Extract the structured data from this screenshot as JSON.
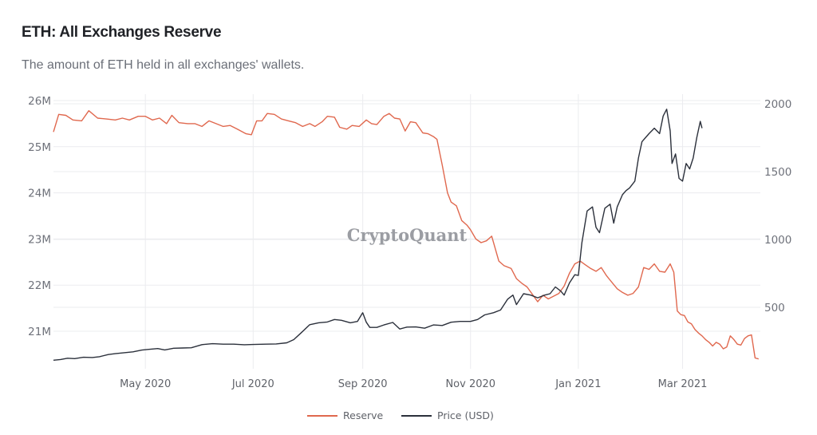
{
  "header": {
    "title": "ETH: All Exchanges Reserve",
    "subtitle": "The amount of ETH held in all exchanges' wallets."
  },
  "watermark": "CryptoQuant",
  "colors": {
    "reserve": "#e0684e",
    "price": "#2b303b",
    "grid": "#ebecef"
  },
  "chart_data": {
    "type": "line",
    "title": "ETH: All Exchanges Reserve",
    "subtitle": "The amount of ETH held in all exchanges' wallets.",
    "xlabel": "",
    "ylabel_left": "",
    "ylabel_right": "",
    "grid": true,
    "legend_position": "bottom-center",
    "x_range": [
      "2020-03-10",
      "2021-03-12"
    ],
    "x_ticks": [
      {
        "date": "2020-05-01",
        "label": "May 2020"
      },
      {
        "date": "2020-07-01",
        "label": "Jul 2020"
      },
      {
        "date": "2020-09-01",
        "label": "Sep 2020"
      },
      {
        "date": "2020-11-01",
        "label": "Nov 2020"
      },
      {
        "date": "2021-01-01",
        "label": "Jan 2021"
      },
      {
        "date": "2021-03-01",
        "label": "Mar 2021"
      }
    ],
    "y_left": {
      "range": [
        20.4,
        26.0
      ],
      "ticks": [
        {
          "value": 21,
          "label": "21M"
        },
        {
          "value": 22,
          "label": "22M"
        },
        {
          "value": 23,
          "label": "23M"
        },
        {
          "value": 24,
          "label": "24M"
        },
        {
          "value": 25,
          "label": "25M"
        },
        {
          "value": 26,
          "label": "26M"
        }
      ],
      "unit": "million ETH"
    },
    "y_right": {
      "range": [
        0,
        2000
      ],
      "ticks": [
        {
          "value": 500,
          "label": "500"
        },
        {
          "value": 1000,
          "label": "1000"
        },
        {
          "value": 1500,
          "label": "1500"
        },
        {
          "value": 2000,
          "label": "2000"
        }
      ],
      "unit": "USD"
    },
    "legend": [
      {
        "name": "Reserve",
        "axis": "left"
      },
      {
        "name": "Price (USD)",
        "axis": "right"
      }
    ],
    "series": [
      {
        "name": "Reserve",
        "axis": "left",
        "points": [
          [
            "2020-03-10",
            25.32
          ],
          [
            "2020-03-13",
            25.7
          ],
          [
            "2020-03-17",
            25.68
          ],
          [
            "2020-03-21",
            25.58
          ],
          [
            "2020-03-26",
            25.56
          ],
          [
            "2020-03-30",
            25.78
          ],
          [
            "2020-04-04",
            25.62
          ],
          [
            "2020-04-09",
            25.6
          ],
          [
            "2020-04-14",
            25.58
          ],
          [
            "2020-04-18",
            25.62
          ],
          [
            "2020-04-22",
            25.58
          ],
          [
            "2020-04-27",
            25.66
          ],
          [
            "2020-05-01",
            25.66
          ],
          [
            "2020-05-05",
            25.58
          ],
          [
            "2020-05-09",
            25.62
          ],
          [
            "2020-05-13",
            25.5
          ],
          [
            "2020-05-16",
            25.68
          ],
          [
            "2020-05-20",
            25.52
          ],
          [
            "2020-05-25",
            25.5
          ],
          [
            "2020-05-29",
            25.5
          ],
          [
            "2020-06-02",
            25.44
          ],
          [
            "2020-06-06",
            25.56
          ],
          [
            "2020-06-10",
            25.5
          ],
          [
            "2020-06-14",
            25.44
          ],
          [
            "2020-06-18",
            25.46
          ],
          [
            "2020-06-22",
            25.38
          ],
          [
            "2020-06-27",
            25.28
          ],
          [
            "2020-06-30",
            25.26
          ],
          [
            "2020-07-03",
            25.56
          ],
          [
            "2020-07-06",
            25.56
          ],
          [
            "2020-07-09",
            25.72
          ],
          [
            "2020-07-13",
            25.7
          ],
          [
            "2020-07-17",
            25.6
          ],
          [
            "2020-07-21",
            25.56
          ],
          [
            "2020-07-25",
            25.52
          ],
          [
            "2020-07-29",
            25.44
          ],
          [
            "2020-08-02",
            25.5
          ],
          [
            "2020-08-05",
            25.44
          ],
          [
            "2020-08-09",
            25.54
          ],
          [
            "2020-08-12",
            25.66
          ],
          [
            "2020-08-16",
            25.64
          ],
          [
            "2020-08-19",
            25.42
          ],
          [
            "2020-08-23",
            25.38
          ],
          [
            "2020-08-26",
            25.46
          ],
          [
            "2020-08-30",
            25.44
          ],
          [
            "2020-09-03",
            25.58
          ],
          [
            "2020-09-06",
            25.5
          ],
          [
            "2020-09-09",
            25.48
          ],
          [
            "2020-09-13",
            25.66
          ],
          [
            "2020-09-16",
            25.72
          ],
          [
            "2020-09-19",
            25.62
          ],
          [
            "2020-09-22",
            25.6
          ],
          [
            "2020-09-25",
            25.34
          ],
          [
            "2020-09-28",
            25.54
          ],
          [
            "2020-10-01",
            25.52
          ],
          [
            "2020-10-05",
            25.3
          ],
          [
            "2020-10-08",
            25.28
          ],
          [
            "2020-10-11",
            25.22
          ],
          [
            "2020-10-13",
            25.16
          ],
          [
            "2020-10-16",
            24.6
          ],
          [
            "2020-10-19",
            24.0
          ],
          [
            "2020-10-21",
            23.8
          ],
          [
            "2020-10-24",
            23.72
          ],
          [
            "2020-10-27",
            23.4
          ],
          [
            "2020-10-30",
            23.3
          ],
          [
            "2020-11-01",
            23.2
          ],
          [
            "2020-11-04",
            23.0
          ],
          [
            "2020-11-07",
            22.92
          ],
          [
            "2020-11-10",
            22.96
          ],
          [
            "2020-11-13",
            23.06
          ],
          [
            "2020-11-17",
            22.52
          ],
          [
            "2020-11-20",
            22.42
          ],
          [
            "2020-11-24",
            22.36
          ],
          [
            "2020-11-27",
            22.14
          ],
          [
            "2020-11-30",
            22.04
          ],
          [
            "2020-12-03",
            21.96
          ],
          [
            "2020-12-06",
            21.8
          ],
          [
            "2020-12-09",
            21.64
          ],
          [
            "2020-12-12",
            21.78
          ],
          [
            "2020-12-15",
            21.7
          ],
          [
            "2020-12-18",
            21.76
          ],
          [
            "2020-12-21",
            21.82
          ],
          [
            "2020-12-24",
            21.98
          ],
          [
            "2020-12-27",
            22.26
          ],
          [
            "2020-12-30",
            22.46
          ],
          [
            "2021-01-02",
            22.52
          ],
          [
            "2021-01-05",
            22.44
          ],
          [
            "2021-01-08",
            22.36
          ],
          [
            "2021-01-11",
            22.3
          ],
          [
            "2021-01-14",
            22.38
          ],
          [
            "2021-01-17",
            22.2
          ],
          [
            "2021-01-20",
            22.06
          ],
          [
            "2021-01-23",
            21.92
          ],
          [
            "2021-01-26",
            21.84
          ],
          [
            "2021-01-29",
            21.78
          ],
          [
            "2021-02-01",
            21.82
          ],
          [
            "2021-02-04",
            21.96
          ],
          [
            "2021-02-07",
            22.38
          ],
          [
            "2021-02-10",
            22.34
          ],
          [
            "2021-02-13",
            22.46
          ],
          [
            "2021-02-16",
            22.3
          ],
          [
            "2021-02-19",
            22.28
          ],
          [
            "2021-02-22",
            22.46
          ],
          [
            "2021-02-24",
            22.28
          ],
          [
            "2021-02-26",
            21.44
          ],
          [
            "2021-02-28",
            21.36
          ],
          [
            "2021-03-02",
            21.34
          ],
          [
            "2021-03-04",
            21.2
          ],
          [
            "2021-03-06",
            21.16
          ],
          [
            "2021-03-08",
            21.04
          ],
          [
            "2021-03-10",
            20.96
          ],
          [
            "2021-03-12",
            20.9
          ],
          [
            "2021-03-14",
            20.82
          ],
          [
            "2021-03-16",
            20.76
          ],
          [
            "2021-03-18",
            20.68
          ],
          [
            "2021-03-20",
            20.76
          ],
          [
            "2021-03-22",
            20.72
          ],
          [
            "2021-03-24",
            20.62
          ],
          [
            "2021-03-26",
            20.66
          ],
          [
            "2021-03-28",
            20.9
          ],
          [
            "2021-03-30",
            20.82
          ],
          [
            "2021-04-01",
            20.72
          ],
          [
            "2021-04-03",
            20.7
          ],
          [
            "2021-04-05",
            20.84
          ],
          [
            "2021-04-07",
            20.9
          ],
          [
            "2021-04-09",
            20.92
          ],
          [
            "2021-04-11",
            20.42
          ],
          [
            "2021-04-13",
            20.4
          ]
        ]
      },
      {
        "name": "Price (USD)",
        "axis": "right",
        "points": [
          [
            "2020-03-10",
            110
          ],
          [
            "2020-03-14",
            115
          ],
          [
            "2020-03-18",
            125
          ],
          [
            "2020-03-22",
            122
          ],
          [
            "2020-03-27",
            132
          ],
          [
            "2020-04-01",
            130
          ],
          [
            "2020-04-05",
            136
          ],
          [
            "2020-04-10",
            152
          ],
          [
            "2020-04-14",
            158
          ],
          [
            "2020-04-19",
            165
          ],
          [
            "2020-04-24",
            172
          ],
          [
            "2020-04-29",
            185
          ],
          [
            "2020-05-03",
            190
          ],
          [
            "2020-05-08",
            196
          ],
          [
            "2020-05-12",
            186
          ],
          [
            "2020-05-17",
            198
          ],
          [
            "2020-05-22",
            200
          ],
          [
            "2020-05-27",
            202
          ],
          [
            "2020-06-02",
            225
          ],
          [
            "2020-06-08",
            232
          ],
          [
            "2020-06-14",
            228
          ],
          [
            "2020-06-20",
            228
          ],
          [
            "2020-06-26",
            224
          ],
          [
            "2020-07-01",
            226
          ],
          [
            "2020-07-08",
            228
          ],
          [
            "2020-07-14",
            230
          ],
          [
            "2020-07-20",
            238
          ],
          [
            "2020-07-24",
            262
          ],
          [
            "2020-07-28",
            310
          ],
          [
            "2020-08-02",
            372
          ],
          [
            "2020-08-07",
            386
          ],
          [
            "2020-08-12",
            392
          ],
          [
            "2020-08-16",
            410
          ],
          [
            "2020-08-20",
            404
          ],
          [
            "2020-08-25",
            386
          ],
          [
            "2020-08-29",
            396
          ],
          [
            "2020-09-01",
            460
          ],
          [
            "2020-09-03",
            390
          ],
          [
            "2020-09-05",
            352
          ],
          [
            "2020-09-09",
            352
          ],
          [
            "2020-09-13",
            370
          ],
          [
            "2020-09-18",
            388
          ],
          [
            "2020-09-22",
            340
          ],
          [
            "2020-09-26",
            354
          ],
          [
            "2020-10-01",
            355
          ],
          [
            "2020-10-06",
            346
          ],
          [
            "2020-10-11",
            370
          ],
          [
            "2020-10-16",
            366
          ],
          [
            "2020-10-21",
            390
          ],
          [
            "2020-10-26",
            396
          ],
          [
            "2020-11-01",
            396
          ],
          [
            "2020-11-05",
            410
          ],
          [
            "2020-11-09",
            444
          ],
          [
            "2020-11-14",
            460
          ],
          [
            "2020-11-18",
            480
          ],
          [
            "2020-11-22",
            560
          ],
          [
            "2020-11-25",
            590
          ],
          [
            "2020-11-27",
            520
          ],
          [
            "2020-12-01",
            600
          ],
          [
            "2020-12-05",
            590
          ],
          [
            "2020-12-09",
            570
          ],
          [
            "2020-12-13",
            590
          ],
          [
            "2020-12-16",
            600
          ],
          [
            "2020-12-19",
            650
          ],
          [
            "2020-12-22",
            620
          ],
          [
            "2020-12-24",
            590
          ],
          [
            "2020-12-27",
            680
          ],
          [
            "2020-12-30",
            740
          ],
          [
            "2021-01-01",
            735
          ],
          [
            "2021-01-03",
            975
          ],
          [
            "2021-01-06",
            1210
          ],
          [
            "2021-01-09",
            1240
          ],
          [
            "2021-01-11",
            1090
          ],
          [
            "2021-01-13",
            1050
          ],
          [
            "2021-01-16",
            1230
          ],
          [
            "2021-01-19",
            1260
          ],
          [
            "2021-01-21",
            1120
          ],
          [
            "2021-01-23",
            1240
          ],
          [
            "2021-01-26",
            1330
          ],
          [
            "2021-01-28",
            1360
          ],
          [
            "2021-01-30",
            1380
          ],
          [
            "2021-02-02",
            1430
          ],
          [
            "2021-02-04",
            1600
          ],
          [
            "2021-02-06",
            1720
          ],
          [
            "2021-02-08",
            1750
          ],
          [
            "2021-02-10",
            1780
          ],
          [
            "2021-02-13",
            1820
          ],
          [
            "2021-02-16",
            1780
          ],
          [
            "2021-02-18",
            1910
          ],
          [
            "2021-02-20",
            1960
          ],
          [
            "2021-02-22",
            1800
          ],
          [
            "2021-02-23",
            1560
          ],
          [
            "2021-02-25",
            1630
          ],
          [
            "2021-02-27",
            1450
          ],
          [
            "2021-03-01",
            1430
          ],
          [
            "2021-03-03",
            1560
          ],
          [
            "2021-03-05",
            1520
          ],
          [
            "2021-03-07",
            1600
          ],
          [
            "2021-03-09",
            1750
          ],
          [
            "2021-03-11",
            1870
          ],
          [
            "2021-03-12",
            1820
          ]
        ]
      }
    ]
  }
}
